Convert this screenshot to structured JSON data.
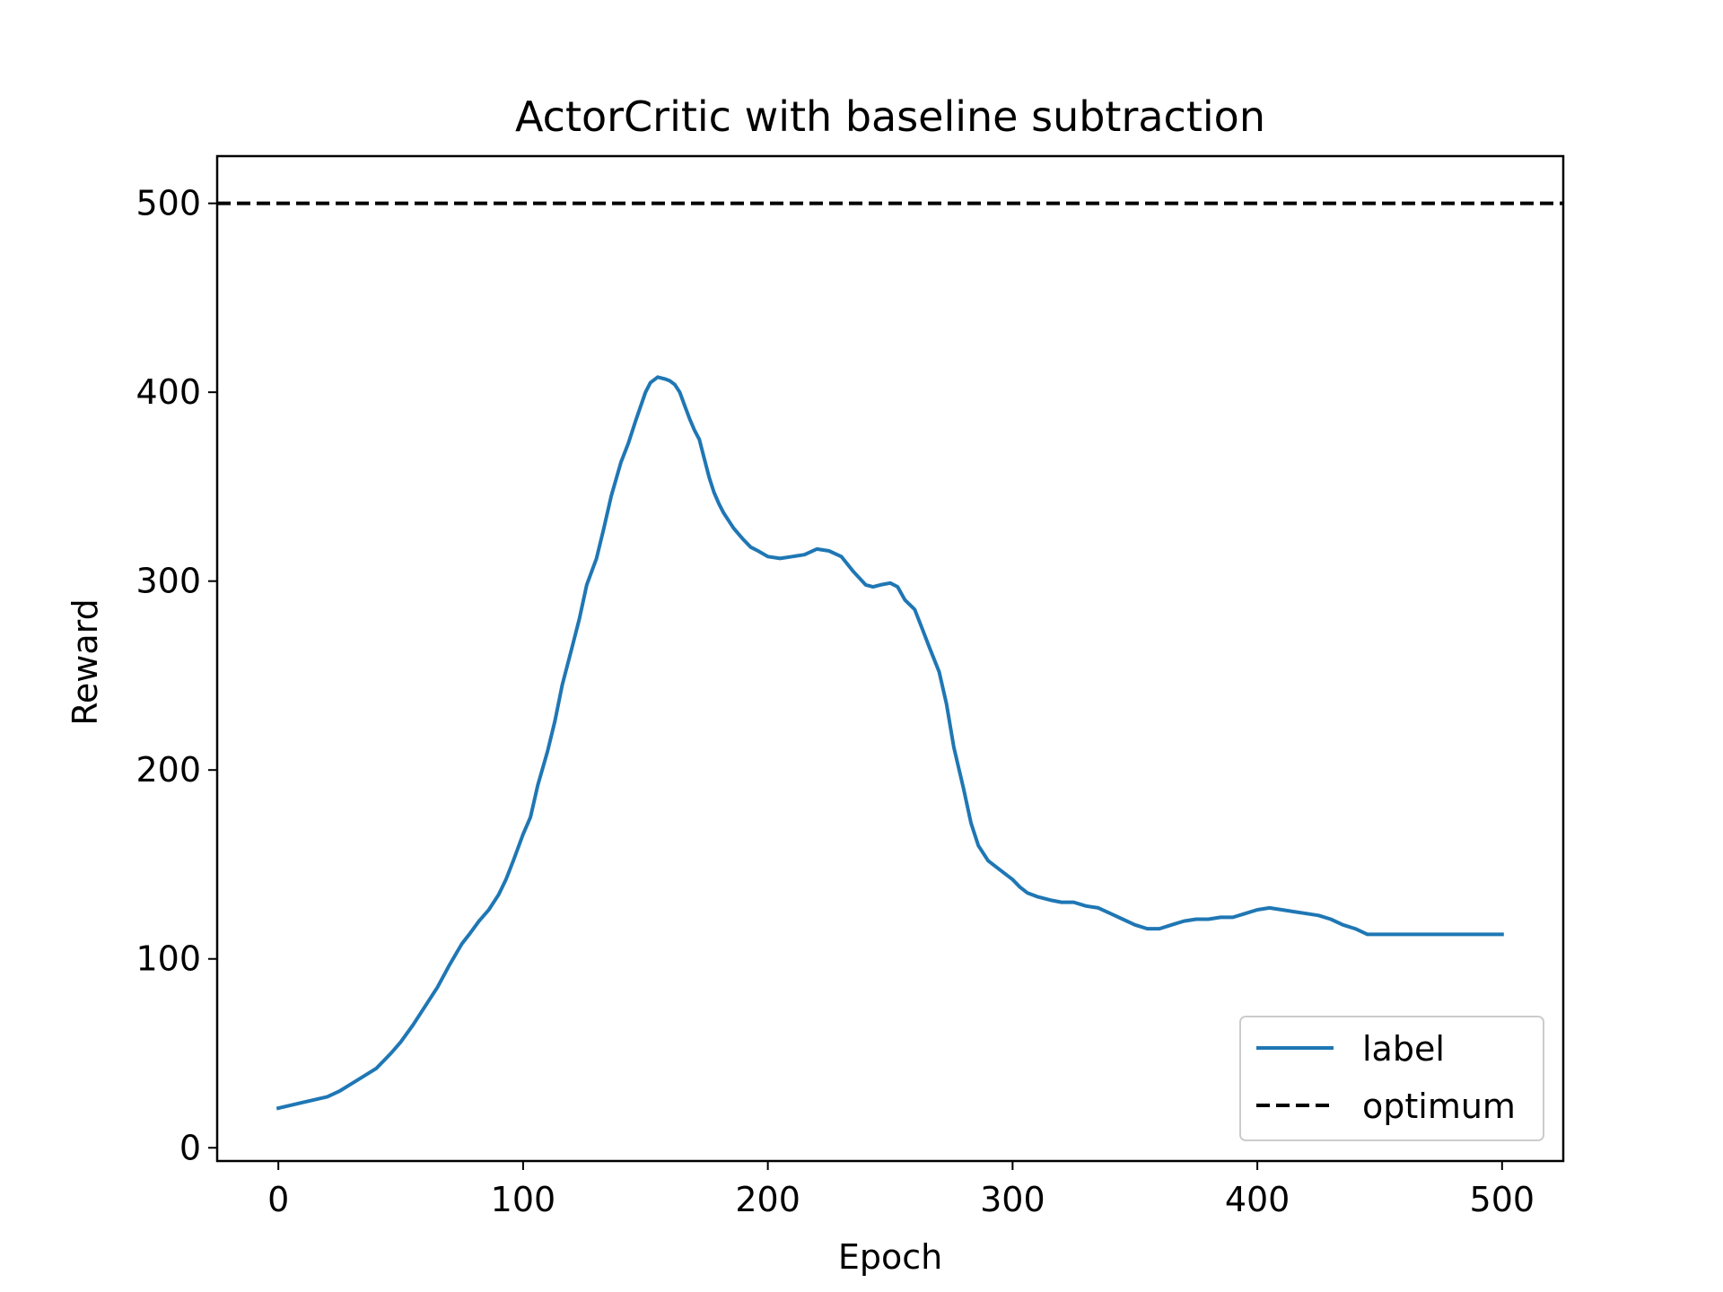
{
  "chart_data": {
    "type": "line",
    "title": "ActorCritic with baseline subtraction",
    "xlabel": "Epoch",
    "ylabel": "Reward",
    "xlim": [
      -25,
      525
    ],
    "ylim": [
      -7,
      525
    ],
    "grid": false,
    "legend_position": "lower-right",
    "xticks": [
      0,
      100,
      200,
      300,
      400,
      500
    ],
    "yticks": [
      0,
      100,
      200,
      300,
      400,
      500
    ],
    "xtick_labels": [
      "0",
      "100",
      "200",
      "300",
      "400",
      "500"
    ],
    "ytick_labels": [
      "0",
      "100",
      "200",
      "300",
      "400",
      "500"
    ],
    "series": [
      {
        "name": "label",
        "color": "#1f77b4",
        "style": "solid",
        "x": [
          0,
          10,
          20,
          25,
          30,
          35,
          40,
          43,
          46,
          50,
          55,
          60,
          65,
          70,
          75,
          78,
          82,
          86,
          90,
          93,
          96,
          100,
          103,
          106,
          110,
          113,
          116,
          120,
          123,
          126,
          130,
          133,
          136,
          140,
          143,
          146,
          150,
          152,
          155,
          158,
          160,
          162,
          164,
          166,
          168,
          170,
          172,
          174,
          176,
          178,
          180,
          182,
          184,
          186,
          188,
          190,
          193,
          196,
          200,
          205,
          210,
          215,
          220,
          225,
          230,
          235,
          240,
          243,
          246,
          250,
          253,
          256,
          260,
          263,
          266,
          270,
          273,
          276,
          280,
          283,
          286,
          290,
          295,
          300,
          303,
          306,
          310,
          313,
          316,
          320,
          325,
          330,
          335,
          340,
          345,
          350,
          355,
          360,
          365,
          370,
          375,
          380,
          385,
          390,
          395,
          400,
          405,
          410,
          415,
          420,
          425,
          430,
          435,
          440,
          445,
          450,
          455,
          460,
          465,
          470,
          475,
          480,
          490,
          500
        ],
        "y": [
          21,
          24,
          27,
          30,
          34,
          38,
          42,
          46,
          50,
          56,
          65,
          75,
          85,
          97,
          108,
          113,
          120,
          126,
          134,
          142,
          152,
          166,
          175,
          192,
          210,
          226,
          245,
          265,
          280,
          298,
          312,
          328,
          345,
          363,
          373,
          385,
          400,
          405,
          408,
          407,
          406,
          404,
          400,
          393,
          386,
          380,
          375,
          365,
          355,
          347,
          341,
          336,
          332,
          328,
          325,
          322,
          318,
          316,
          313,
          312,
          313,
          314,
          317,
          316,
          313,
          305,
          298,
          297,
          298,
          299,
          297,
          290,
          285,
          275,
          265,
          252,
          235,
          212,
          190,
          172,
          160,
          152,
          147,
          142,
          138,
          135,
          133,
          132,
          131,
          130,
          130,
          128,
          127,
          124,
          121,
          118,
          116,
          116,
          118,
          120,
          121,
          121,
          122,
          122,
          124,
          126,
          127,
          126,
          125,
          124,
          123,
          121,
          118,
          116,
          113,
          113,
          113,
          113,
          113,
          113,
          113,
          113,
          113,
          113
        ]
      },
      {
        "name": "optimum",
        "color": "#000000",
        "style": "dashed",
        "y_constant": 500
      }
    ]
  }
}
